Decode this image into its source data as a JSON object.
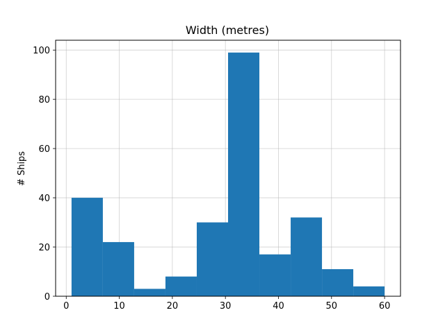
{
  "chart_data": {
    "type": "bar",
    "title": "Width (metres)",
    "xlabel": "",
    "ylabel": "# Ships",
    "bin_edges": [
      1.0,
      6.9,
      12.8,
      18.7,
      24.6,
      30.5,
      36.4,
      42.3,
      48.2,
      54.1,
      60.0
    ],
    "values": [
      40,
      22,
      3,
      8,
      30,
      99,
      17,
      32,
      11,
      4
    ],
    "xlim": [
      -2,
      63
    ],
    "ylim": [
      0,
      104
    ],
    "xticks": [
      0,
      10,
      20,
      30,
      40,
      50,
      60
    ],
    "yticks": [
      0,
      20,
      40,
      60,
      80,
      100
    ],
    "grid": true,
    "bar_color": "#1f77b4"
  }
}
